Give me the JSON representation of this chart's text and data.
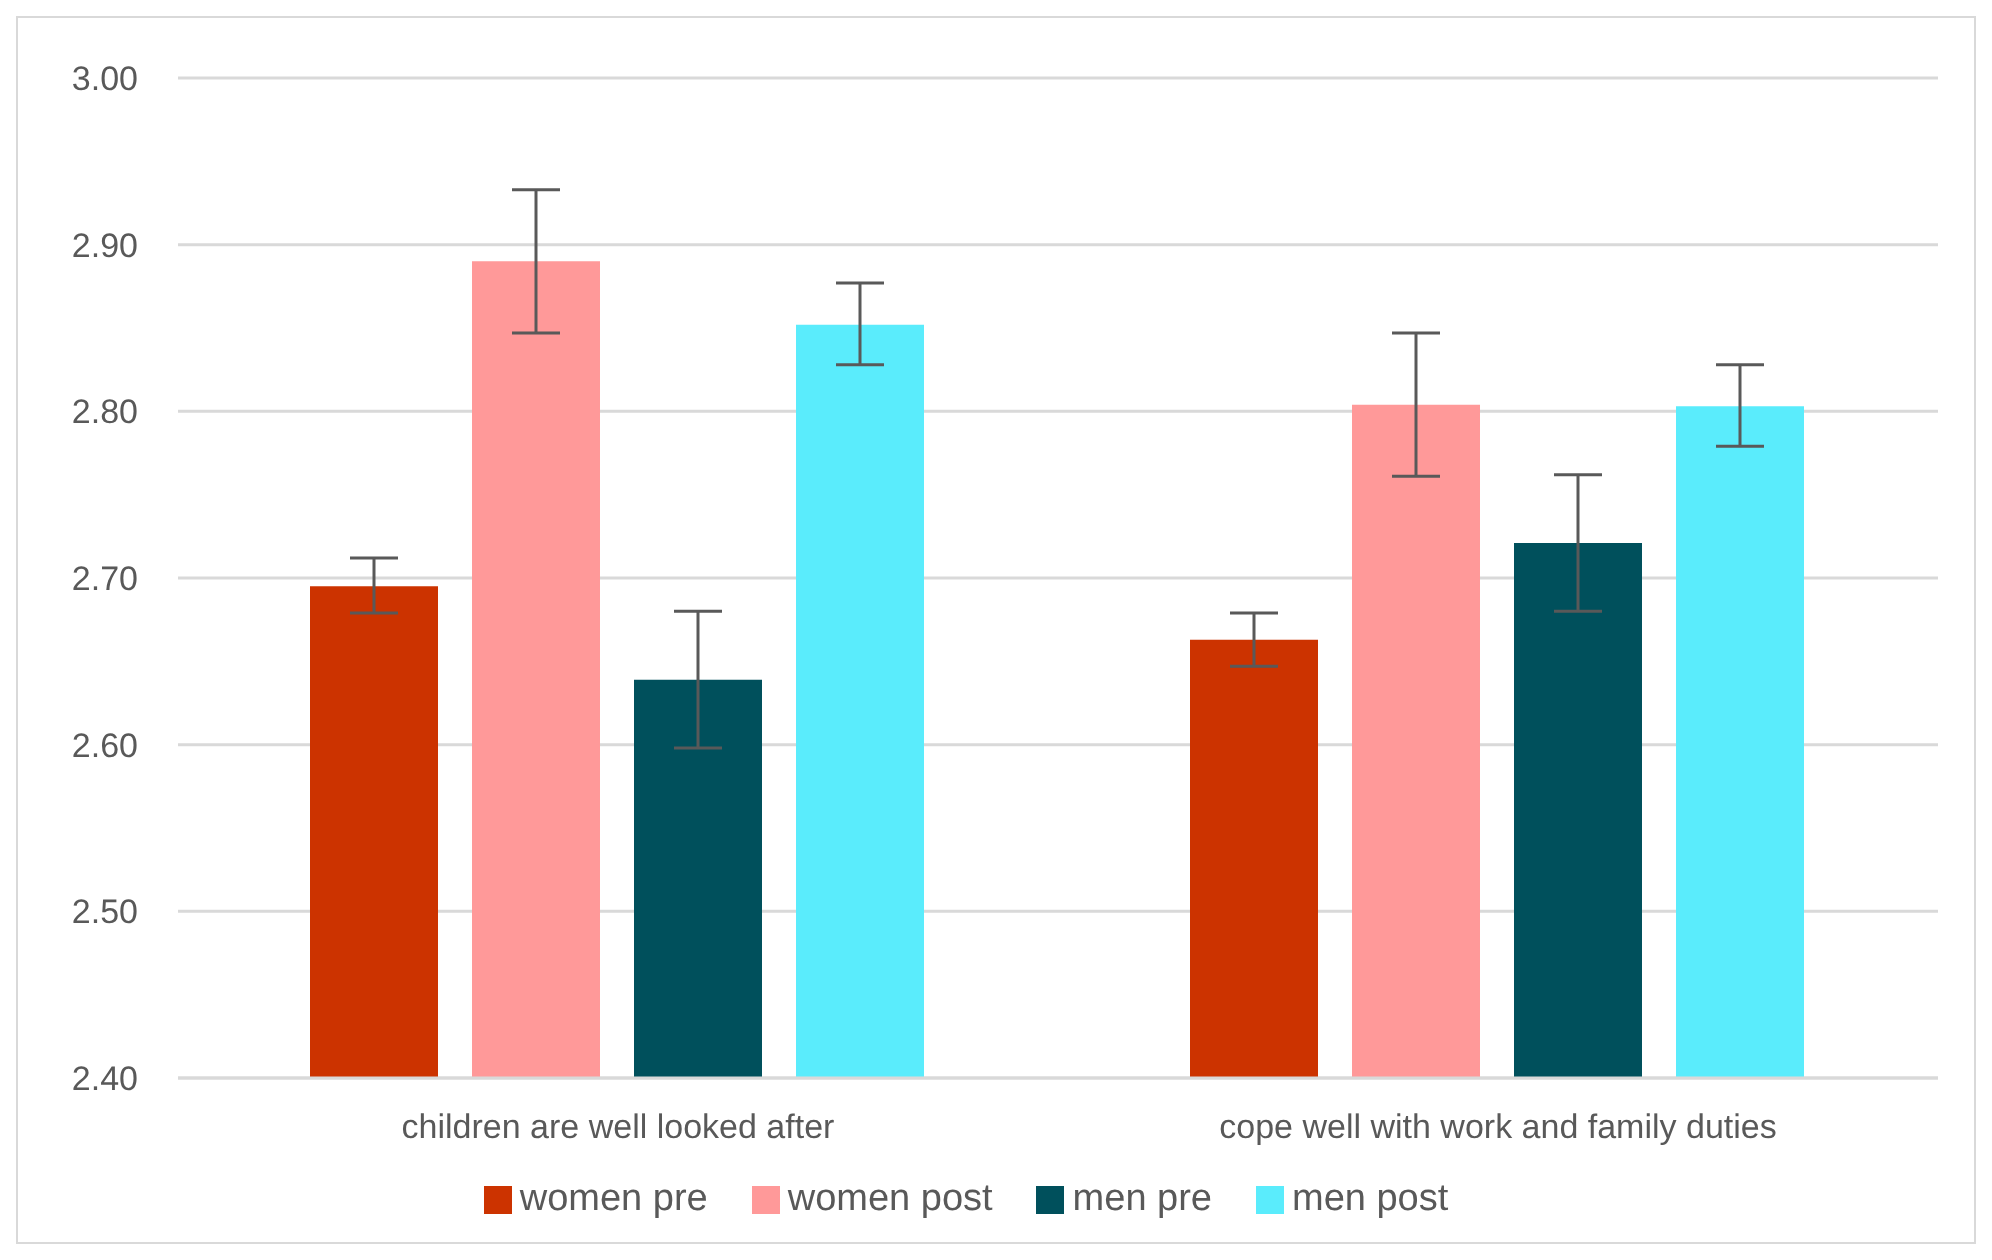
{
  "chart_data": {
    "type": "bar",
    "categories": [
      "children are well looked after",
      "cope well with work and family duties"
    ],
    "series": [
      {
        "name": "women pre",
        "color": "#cc3300",
        "values": [
          2.695,
          2.663
        ],
        "errors": [
          [
            2.679,
            2.712
          ],
          [
            2.647,
            2.679
          ]
        ]
      },
      {
        "name": "women post",
        "color": "#ff9999",
        "values": [
          2.89,
          2.804
        ],
        "errors": [
          [
            2.847,
            2.933
          ],
          [
            2.761,
            2.847
          ]
        ]
      },
      {
        "name": "men pre",
        "color": "#00505c",
        "values": [
          2.639,
          2.721
        ],
        "errors": [
          [
            2.598,
            2.68
          ],
          [
            2.68,
            2.762
          ]
        ]
      },
      {
        "name": "men post",
        "color": "#5aecfc",
        "values": [
          2.852,
          2.803
        ],
        "errors": [
          [
            2.828,
            2.877
          ],
          [
            2.779,
            2.828
          ]
        ]
      }
    ],
    "ylim": [
      2.4,
      3.0
    ],
    "yticks": [
      {
        "value": 2.4,
        "label": "2.40"
      },
      {
        "value": 2.5,
        "label": "2.50"
      },
      {
        "value": 2.6,
        "label": "2.60"
      },
      {
        "value": 2.7,
        "label": "2.70"
      },
      {
        "value": 2.8,
        "label": "2.80"
      },
      {
        "value": 2.9,
        "label": "2.90"
      },
      {
        "value": 3.0,
        "label": "3.00"
      }
    ],
    "grid": "y",
    "legend": "bottom"
  }
}
